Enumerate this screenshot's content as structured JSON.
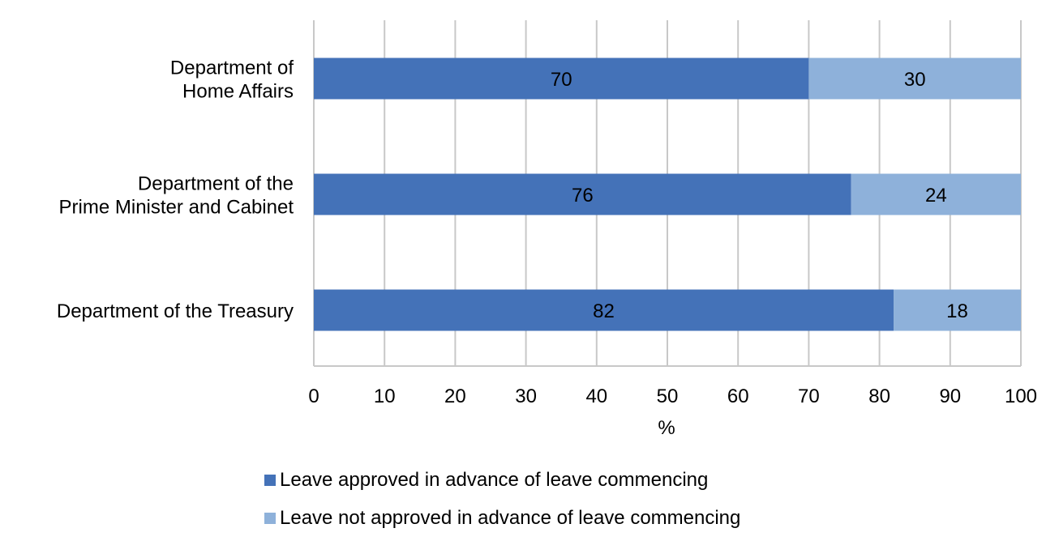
{
  "chart_data": {
    "type": "bar",
    "orientation": "horizontal",
    "stacked": true,
    "categories": [
      [
        "Department of",
        "Home Affairs"
      ],
      [
        "Department of the",
        "Prime Minister and Cabinet"
      ],
      [
        "Department of the Treasury"
      ]
    ],
    "series": [
      {
        "name": "Leave approved in advance of leave commencing",
        "color": "#4472b8",
        "values": [
          70,
          76,
          82
        ]
      },
      {
        "name": "Leave not approved in advance of leave commencing",
        "color": "#8eb1da",
        "values": [
          30,
          24,
          18
        ]
      }
    ],
    "xlim": [
      0,
      100
    ],
    "xticks": [
      0,
      10,
      20,
      30,
      40,
      50,
      60,
      70,
      80,
      90,
      100
    ],
    "xlabel": "%",
    "grid": true,
    "legend_position": "bottom"
  }
}
